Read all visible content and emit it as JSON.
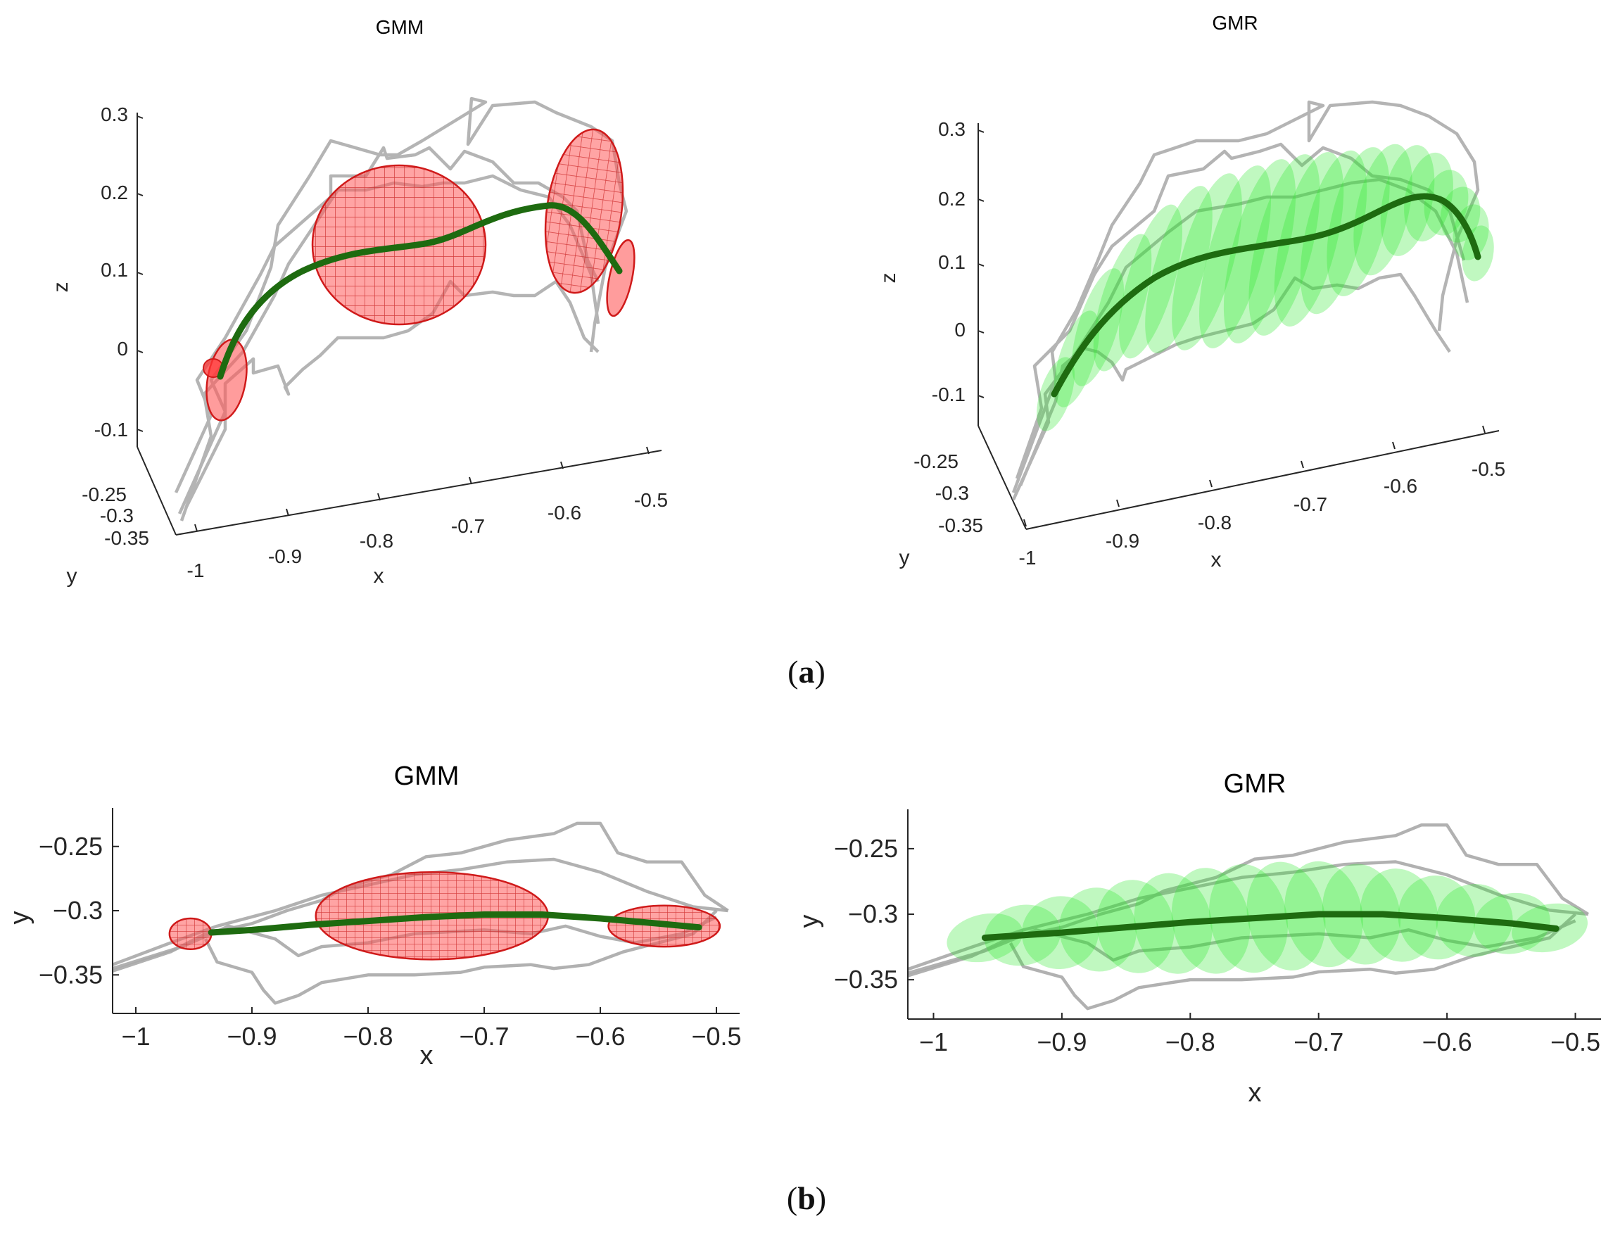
{
  "colors": {
    "demo": "#a8a8a8",
    "mean": "#1e6b10",
    "gmm_fill": "#ff5a5a",
    "gmm_edge": "#d01a1a",
    "gmr_fill": "#2ee82e",
    "axis": "#262626"
  },
  "captions": {
    "a": "a",
    "b": "b"
  },
  "chart_data": [
    {
      "id": "a-gmm",
      "type": "scatter",
      "view": "3d",
      "title": "GMM",
      "xlabel": "x",
      "ylabel": "y",
      "zlabel": "z",
      "xlim": [
        -1.0,
        -0.5
      ],
      "ylim": [
        -0.35,
        -0.25
      ],
      "zlim": [
        -0.1,
        0.3
      ],
      "xticks": [
        "-1",
        "-0.9",
        "-0.8",
        "-0.7",
        "-0.6",
        "-0.5"
      ],
      "yticks": [
        "-0.25",
        "-0.3",
        "-0.35"
      ],
      "zticks": [
        "0.3",
        "0.2",
        "0.1",
        "0",
        "-0.1"
      ],
      "series": [
        {
          "name": "demonstrations",
          "style": "gray lines"
        },
        {
          "name": "mean trajectory",
          "style": "green line",
          "x": [
            -0.95,
            -0.9,
            -0.85,
            -0.8,
            -0.75,
            -0.7,
            -0.65,
            -0.6,
            -0.55,
            -0.51
          ],
          "z": [
            0.0,
            0.08,
            0.13,
            0.14,
            0.14,
            0.15,
            0.17,
            0.2,
            0.18,
            0.12
          ]
        },
        {
          "name": "GMM components",
          "style": "red ellipsoids",
          "centers_x": [
            -0.96,
            -0.95,
            -0.76,
            -0.55,
            -0.51
          ],
          "count": 5
        }
      ]
    },
    {
      "id": "a-gmr",
      "type": "scatter",
      "view": "3d",
      "title": "GMR",
      "xlabel": "x",
      "ylabel": "y",
      "zlabel": "z",
      "xlim": [
        -1.0,
        -0.5
      ],
      "ylim": [
        -0.35,
        -0.25
      ],
      "zlim": [
        -0.1,
        0.3
      ],
      "xticks": [
        "-1",
        "-0.9",
        "-0.8",
        "-0.7",
        "-0.6",
        "-0.5"
      ],
      "yticks": [
        "-0.25",
        "-0.3",
        "-0.35"
      ],
      "zticks": [
        "0.3",
        "0.2",
        "0.1",
        "0",
        "-0.1"
      ],
      "series": [
        {
          "name": "demonstrations",
          "style": "gray lines"
        },
        {
          "name": "GMR mean",
          "style": "green line",
          "x": [
            -0.96,
            -0.9,
            -0.85,
            -0.8,
            -0.75,
            -0.7,
            -0.65,
            -0.6,
            -0.55,
            -0.51
          ],
          "z": [
            -0.03,
            0.06,
            0.12,
            0.14,
            0.15,
            0.16,
            0.18,
            0.21,
            0.2,
            0.12
          ]
        },
        {
          "name": "GMR covariance",
          "style": "green ellipses",
          "count": 20
        }
      ]
    },
    {
      "id": "b-gmm",
      "type": "scatter",
      "view": "xy",
      "title": "GMM",
      "xlabel": "x",
      "ylabel": "y",
      "xlim": [
        -1.02,
        -0.48
      ],
      "ylim": [
        -0.38,
        -0.22
      ],
      "xticks": [
        -1,
        -0.9,
        -0.8,
        -0.7,
        -0.6,
        -0.5
      ],
      "xtick_labels": [
        "−1",
        "−0.9",
        "−0.8",
        "−0.7",
        "−0.6",
        "−0.5"
      ],
      "yticks": [
        -0.25,
        -0.3,
        -0.35
      ],
      "ytick_labels": [
        "−0.25",
        "−0.3",
        "−0.35"
      ],
      "series": [
        {
          "name": "mean trajectory",
          "x": [
            -0.935,
            -0.9,
            -0.85,
            -0.8,
            -0.75,
            -0.7,
            -0.65,
            -0.6,
            -0.55,
            -0.515
          ],
          "y": [
            -0.317,
            -0.315,
            -0.311,
            -0.308,
            -0.305,
            -0.303,
            -0.303,
            -0.306,
            -0.31,
            -0.313
          ]
        },
        {
          "name": "GMM components",
          "ellipses": [
            {
              "cx": -0.953,
              "cy": -0.318,
              "rx": 0.018,
              "ry": 0.012
            },
            {
              "cx": -0.745,
              "cy": -0.304,
              "rx": 0.1,
              "ry": 0.034
            },
            {
              "cx": -0.545,
              "cy": -0.312,
              "rx": 0.048,
              "ry": 0.016
            }
          ]
        }
      ]
    },
    {
      "id": "b-gmr",
      "type": "scatter",
      "view": "xy",
      "title": "GMR",
      "xlabel": "x",
      "ylabel": "y",
      "xlim": [
        -1.02,
        -0.48
      ],
      "ylim": [
        -0.38,
        -0.22
      ],
      "xticks": [
        -1,
        -0.9,
        -0.8,
        -0.7,
        -0.6,
        -0.5
      ],
      "xtick_labels": [
        "−1",
        "−0.9",
        "−0.8",
        "−0.7",
        "−0.6",
        "−0.5"
      ],
      "yticks": [
        -0.25,
        -0.3,
        -0.35
      ],
      "ytick_labels": [
        "−0.25",
        "−0.3",
        "−0.35"
      ],
      "series": [
        {
          "name": "GMR mean",
          "x": [
            -0.96,
            -0.9,
            -0.85,
            -0.8,
            -0.75,
            -0.7,
            -0.65,
            -0.6,
            -0.55,
            -0.515
          ],
          "y": [
            -0.318,
            -0.314,
            -0.31,
            -0.306,
            -0.303,
            -0.3,
            -0.3,
            -0.303,
            -0.307,
            -0.311
          ]
        }
      ]
    }
  ]
}
